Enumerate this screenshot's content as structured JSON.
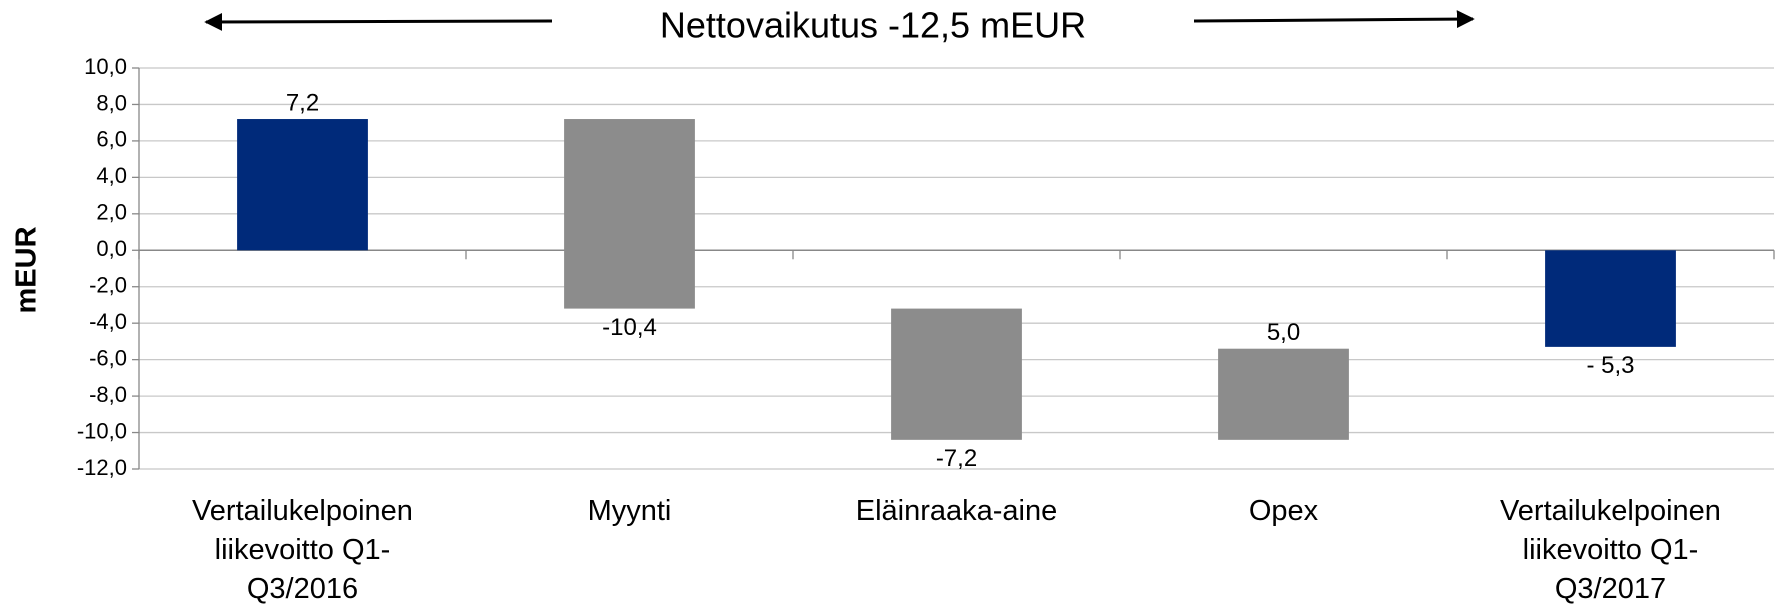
{
  "chart_data": {
    "type": "waterfall",
    "title": "Nettovaikutus -12,5 mEUR",
    "y_label": "mEUR",
    "categories": [
      "Vertailukelpoinen liikevoitto Q1-Q3/2016",
      "Myynti",
      "Eläinraaka-aine",
      "Opex",
      "Vertailukelpoinen liikevoitto Q1-Q3/2017"
    ],
    "values": [
      7.2,
      -10.4,
      -7.2,
      5.0,
      -5.3
    ],
    "value_labels": [
      "7,2",
      "-10,4",
      "-7,2",
      "5,0",
      "- 5,3"
    ],
    "measure": [
      "absolute",
      "relative",
      "relative",
      "relative",
      "absolute"
    ],
    "total_color": "#002a7a",
    "delta_color": "#8c8c8c",
    "ylim": [
      -12,
      10
    ],
    "yticks": [
      {
        "value": -12,
        "label": "-12,0"
      },
      {
        "value": -10,
        "label": "-10,0"
      },
      {
        "value": -8,
        "label": "-8,0"
      },
      {
        "value": -6,
        "label": "-6,0"
      },
      {
        "value": -4,
        "label": "-4,0"
      },
      {
        "value": -2,
        "label": "-2,0"
      },
      {
        "value": 0,
        "label": "0,0"
      },
      {
        "value": 2,
        "label": "2,0"
      },
      {
        "value": 4,
        "label": "4,0"
      },
      {
        "value": 6,
        "label": "6,0"
      },
      {
        "value": 8,
        "label": "8,0"
      },
      {
        "value": 10,
        "label": "10,0"
      }
    ],
    "grid": true
  }
}
